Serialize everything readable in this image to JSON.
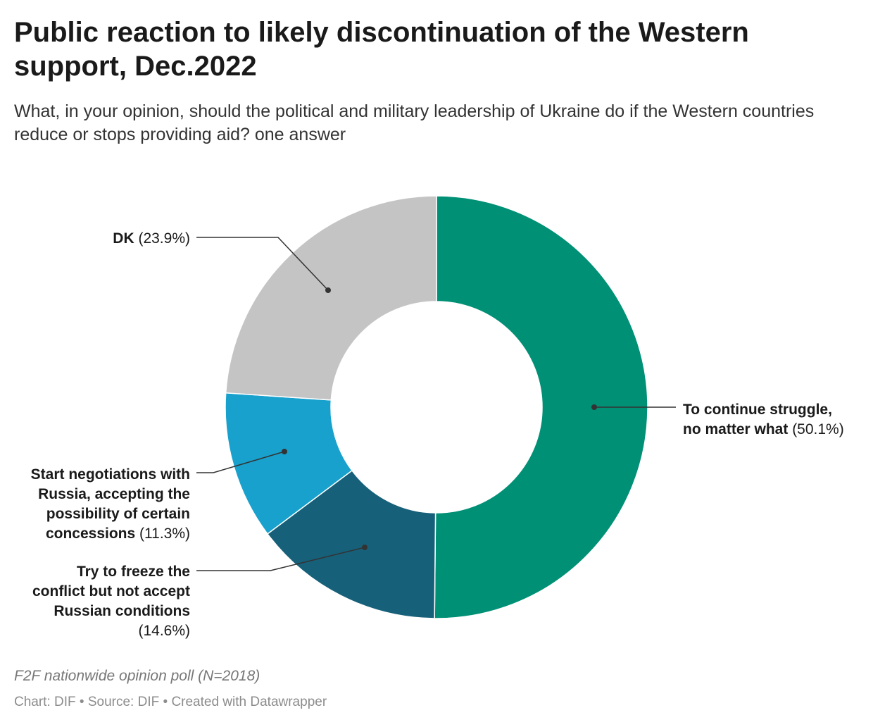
{
  "header": {
    "title": "Public reaction to likely discontinuation of the Western support, Dec.2022",
    "subtitle": "What, in your opinion, should the political and military leadership of Ukraine do if the Western countries reduce or stops providing aid? one answer"
  },
  "chart_data": {
    "type": "pie",
    "subtype": "donut",
    "slices": [
      {
        "label": "To continue struggle, no matter what",
        "value": 50.1,
        "display": "(50.1%)",
        "label_lines": [
          "To continue struggle,",
          "no matter what"
        ],
        "color": "#009076"
      },
      {
        "label": "Try to freeze the conflict but not accept Russian conditions",
        "value": 14.6,
        "display": "(14.6%)",
        "label_lines": [
          "Try to freeze the",
          "conflict but not accept",
          "Russian conditions"
        ],
        "color": "#17607a"
      },
      {
        "label": "Start negotiations with Russia, accepting the possibility of certain concessions",
        "value": 11.3,
        "display": "(11.3%)",
        "label_lines": [
          "Start negotiations with",
          "Russia, accepting the",
          "possibility of certain",
          "concessions"
        ],
        "color": "#18a1cd"
      },
      {
        "label": "DK",
        "value": 23.9,
        "display": "(23.9%)",
        "label_lines": [
          "DK"
        ],
        "color": "#c4c4c4"
      }
    ]
  },
  "footer": {
    "notes": "F2F nationwide opinion poll (N=2018)",
    "chart_credit": "Chart: DIF",
    "source": "Source: DIF",
    "created_with": "Created with Datawrapper",
    "separator": " • "
  }
}
